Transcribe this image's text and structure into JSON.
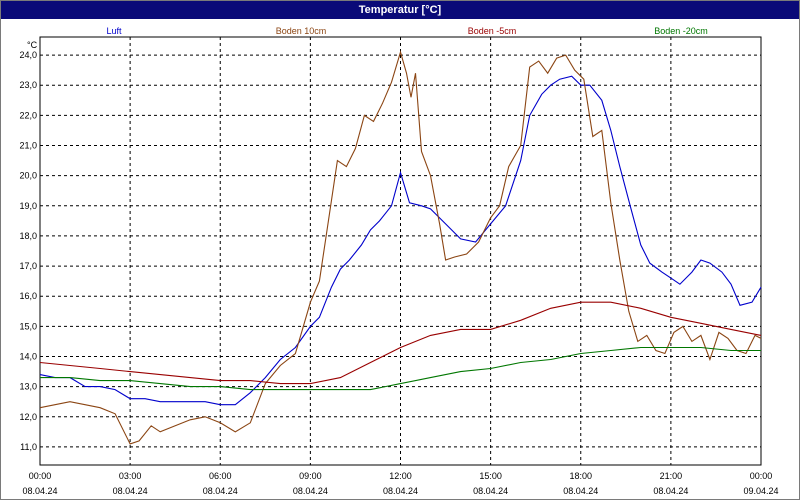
{
  "window": {
    "title": "Temperatur [°C]"
  },
  "chart_data": {
    "type": "line",
    "title": "Temperatur [°C]",
    "ylabel": "°C",
    "xlabel": "",
    "ylim": [
      10.4,
      24.6
    ],
    "xlim": [
      0,
      24
    ],
    "grid": true,
    "legend_placement": "top",
    "y_ticks": [
      11.0,
      12.0,
      13.0,
      14.0,
      15.0,
      16.0,
      17.0,
      18.0,
      19.0,
      20.0,
      21.0,
      22.0,
      23.0,
      24.0
    ],
    "y_tick_labels": [
      "11,0",
      "12,0",
      "13,0",
      "14,0",
      "15,0",
      "16,0",
      "17,0",
      "18,0",
      "19,0",
      "20,0",
      "21,0",
      "22,0",
      "23,0",
      "24,0"
    ],
    "x_ticks": [
      {
        "hour": 0,
        "time": "00:00",
        "date": "08.04.24"
      },
      {
        "hour": 3,
        "time": "03:00",
        "date": "08.04.24"
      },
      {
        "hour": 6,
        "time": "06:00",
        "date": "08.04.24"
      },
      {
        "hour": 9,
        "time": "09:00",
        "date": "08.04.24"
      },
      {
        "hour": 12,
        "time": "12:00",
        "date": "08.04.24"
      },
      {
        "hour": 15,
        "time": "15:00",
        "date": "08.04.24"
      },
      {
        "hour": 18,
        "time": "18:00",
        "date": "08.04.24"
      },
      {
        "hour": 21,
        "time": "21:00",
        "date": "08.04.24"
      },
      {
        "hour": 24,
        "time": "00:00",
        "date": "09.04.24"
      }
    ],
    "series": [
      {
        "name": "Luft",
        "color": "#0000cc",
        "points": [
          [
            0,
            13.4
          ],
          [
            0.5,
            13.3
          ],
          [
            1,
            13.3
          ],
          [
            1.5,
            13.0
          ],
          [
            2,
            13.0
          ],
          [
            2.5,
            12.9
          ],
          [
            3,
            12.6
          ],
          [
            3.5,
            12.6
          ],
          [
            4,
            12.5
          ],
          [
            4.5,
            12.5
          ],
          [
            5,
            12.5
          ],
          [
            5.5,
            12.5
          ],
          [
            6,
            12.4
          ],
          [
            6.5,
            12.4
          ],
          [
            7,
            12.8
          ],
          [
            7.5,
            13.3
          ],
          [
            8,
            13.9
          ],
          [
            8.5,
            14.3
          ],
          [
            9,
            15.0
          ],
          [
            9.3,
            15.3
          ],
          [
            9.7,
            16.3
          ],
          [
            10,
            16.9
          ],
          [
            10.3,
            17.2
          ],
          [
            10.7,
            17.7
          ],
          [
            11,
            18.2
          ],
          [
            11.3,
            18.5
          ],
          [
            11.7,
            19.0
          ],
          [
            12,
            20.1
          ],
          [
            12.3,
            19.1
          ],
          [
            12.7,
            19.0
          ],
          [
            13,
            18.9
          ],
          [
            13.5,
            18.4
          ],
          [
            14,
            17.9
          ],
          [
            14.5,
            17.8
          ],
          [
            15,
            18.4
          ],
          [
            15.5,
            19.0
          ],
          [
            16,
            20.5
          ],
          [
            16.3,
            22.0
          ],
          [
            16.7,
            22.7
          ],
          [
            17,
            23.0
          ],
          [
            17.3,
            23.2
          ],
          [
            17.7,
            23.3
          ],
          [
            18,
            23.0
          ],
          [
            18.3,
            23.0
          ],
          [
            18.7,
            22.5
          ],
          [
            19,
            21.5
          ],
          [
            19.3,
            20.3
          ],
          [
            19.7,
            18.8
          ],
          [
            20,
            17.7
          ],
          [
            20.3,
            17.1
          ],
          [
            20.7,
            16.8
          ],
          [
            21,
            16.6
          ],
          [
            21.3,
            16.4
          ],
          [
            21.7,
            16.8
          ],
          [
            22,
            17.2
          ],
          [
            22.3,
            17.1
          ],
          [
            22.7,
            16.8
          ],
          [
            23,
            16.4
          ],
          [
            23.3,
            15.7
          ],
          [
            23.7,
            15.8
          ],
          [
            24,
            16.3
          ]
        ]
      },
      {
        "name": "Boden 10cm",
        "color": "#8b4513",
        "points": [
          [
            0,
            12.3
          ],
          [
            0.5,
            12.4
          ],
          [
            1,
            12.5
          ],
          [
            1.5,
            12.4
          ],
          [
            2,
            12.3
          ],
          [
            2.5,
            12.1
          ],
          [
            3,
            11.1
          ],
          [
            3.3,
            11.2
          ],
          [
            3.7,
            11.7
          ],
          [
            4,
            11.5
          ],
          [
            4.5,
            11.7
          ],
          [
            5,
            11.9
          ],
          [
            5.5,
            12.0
          ],
          [
            6,
            11.8
          ],
          [
            6.5,
            11.5
          ],
          [
            7,
            11.8
          ],
          [
            7.5,
            13.1
          ],
          [
            8,
            13.7
          ],
          [
            8.5,
            14.1
          ],
          [
            9,
            15.8
          ],
          [
            9.3,
            16.5
          ],
          [
            9.6,
            18.5
          ],
          [
            9.9,
            20.5
          ],
          [
            10.2,
            20.3
          ],
          [
            10.5,
            20.9
          ],
          [
            10.8,
            22.0
          ],
          [
            11.1,
            21.8
          ],
          [
            11.4,
            22.4
          ],
          [
            11.7,
            23.1
          ],
          [
            12,
            24.1
          ],
          [
            12.2,
            23.4
          ],
          [
            12.35,
            22.6
          ],
          [
            12.5,
            23.4
          ],
          [
            12.7,
            20.8
          ],
          [
            13,
            20.0
          ],
          [
            13.3,
            18.4
          ],
          [
            13.5,
            17.2
          ],
          [
            13.8,
            17.3
          ],
          [
            14.2,
            17.4
          ],
          [
            14.6,
            17.8
          ],
          [
            15,
            18.6
          ],
          [
            15.3,
            19.0
          ],
          [
            15.6,
            20.3
          ],
          [
            16,
            21.0
          ],
          [
            16.3,
            23.6
          ],
          [
            16.6,
            23.8
          ],
          [
            16.9,
            23.4
          ],
          [
            17.2,
            23.9
          ],
          [
            17.5,
            24.0
          ],
          [
            17.8,
            23.5
          ],
          [
            18.1,
            23.2
          ],
          [
            18.4,
            21.3
          ],
          [
            18.7,
            21.5
          ],
          [
            19,
            19.1
          ],
          [
            19.3,
            17.2
          ],
          [
            19.6,
            15.5
          ],
          [
            19.9,
            14.5
          ],
          [
            20.2,
            14.7
          ],
          [
            20.5,
            14.2
          ],
          [
            20.8,
            14.1
          ],
          [
            21.1,
            14.8
          ],
          [
            21.4,
            15.0
          ],
          [
            21.7,
            14.5
          ],
          [
            22,
            14.7
          ],
          [
            22.3,
            13.9
          ],
          [
            22.6,
            14.8
          ],
          [
            22.9,
            14.6
          ],
          [
            23.2,
            14.2
          ],
          [
            23.5,
            14.1
          ],
          [
            23.8,
            14.7
          ],
          [
            24,
            14.6
          ]
        ]
      },
      {
        "name": "Boden -5cm",
        "color": "#990000",
        "points": [
          [
            0,
            13.8
          ],
          [
            1,
            13.7
          ],
          [
            2,
            13.6
          ],
          [
            3,
            13.5
          ],
          [
            4,
            13.4
          ],
          [
            5,
            13.3
          ],
          [
            6,
            13.2
          ],
          [
            7,
            13.2
          ],
          [
            8,
            13.1
          ],
          [
            9,
            13.1
          ],
          [
            10,
            13.3
          ],
          [
            11,
            13.8
          ],
          [
            12,
            14.3
          ],
          [
            13,
            14.7
          ],
          [
            14,
            14.9
          ],
          [
            15,
            14.9
          ],
          [
            16,
            15.2
          ],
          [
            17,
            15.6
          ],
          [
            18,
            15.8
          ],
          [
            19,
            15.8
          ],
          [
            20,
            15.6
          ],
          [
            21,
            15.3
          ],
          [
            22,
            15.1
          ],
          [
            23,
            14.9
          ],
          [
            24,
            14.7
          ]
        ]
      },
      {
        "name": "Boden -20cm",
        "color": "#007700",
        "points": [
          [
            0,
            13.3
          ],
          [
            1,
            13.3
          ],
          [
            2,
            13.2
          ],
          [
            3,
            13.2
          ],
          [
            4,
            13.1
          ],
          [
            5,
            13.0
          ],
          [
            6,
            13.0
          ],
          [
            7,
            12.9
          ],
          [
            8,
            12.9
          ],
          [
            9,
            12.9
          ],
          [
            10,
            12.9
          ],
          [
            11,
            12.9
          ],
          [
            12,
            13.1
          ],
          [
            13,
            13.3
          ],
          [
            14,
            13.5
          ],
          [
            15,
            13.6
          ],
          [
            16,
            13.8
          ],
          [
            17,
            13.9
          ],
          [
            18,
            14.1
          ],
          [
            19,
            14.2
          ],
          [
            20,
            14.3
          ],
          [
            21,
            14.3
          ],
          [
            22,
            14.3
          ],
          [
            23,
            14.2
          ],
          [
            24,
            14.2
          ]
        ]
      }
    ]
  }
}
